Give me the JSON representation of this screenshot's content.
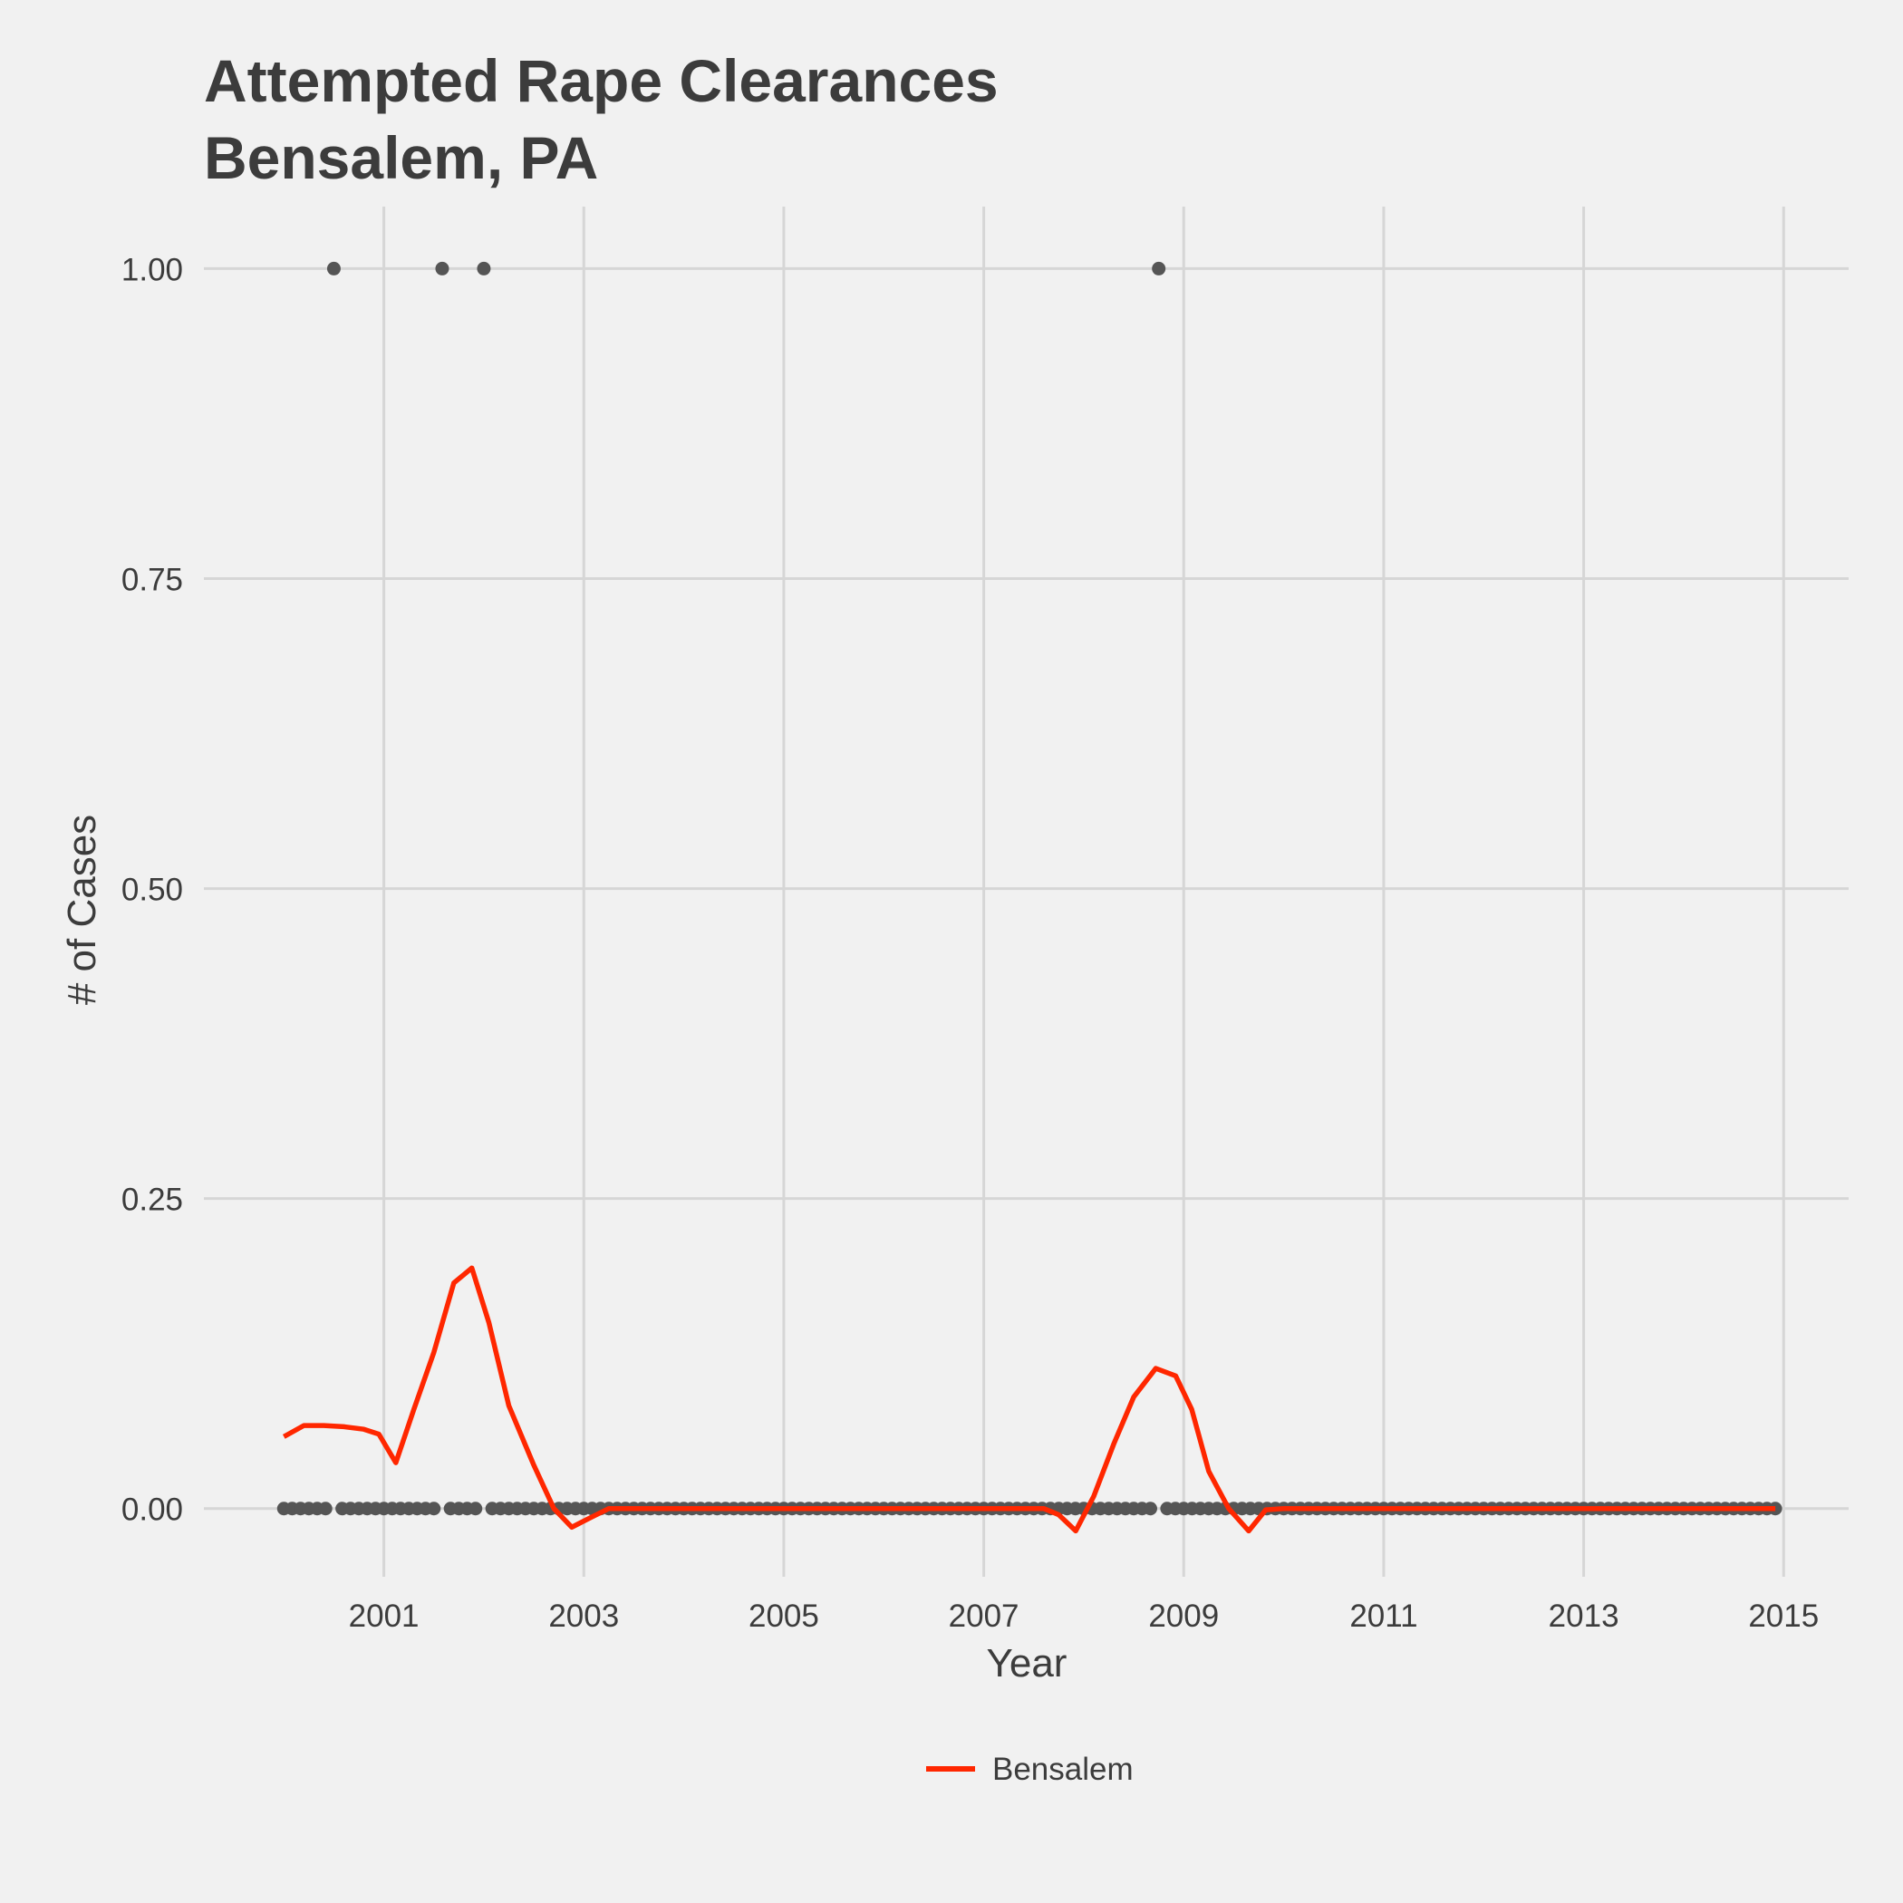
{
  "chart_data": {
    "type": "line",
    "title": "Attempted Rape Clearances",
    "subtitle": "Bensalem, PA",
    "xlabel": "Year",
    "ylabel": "# of Cases",
    "xlim": [
      1999.2,
      2015.65
    ],
    "ylim": [
      -0.055,
      1.05
    ],
    "x_ticks": [
      2001,
      2003,
      2005,
      2007,
      2009,
      2011,
      2013,
      2015
    ],
    "y_ticks": [
      0.0,
      0.25,
      0.5,
      0.75,
      1.0
    ],
    "y_tick_labels": [
      "0.00",
      "0.25",
      "0.50",
      "0.75",
      "1.00"
    ],
    "grid": true,
    "legend_position": "bottom",
    "points": {
      "color": "#555555",
      "start": 2000.0,
      "end": 2014.917,
      "step": 0.0833333,
      "default_value": 0,
      "nonzero": [
        {
          "x": 2000.5,
          "y": 1
        },
        {
          "x": 2001.583,
          "y": 1
        },
        {
          "x": 2002.0,
          "y": 1
        },
        {
          "x": 2008.75,
          "y": 1
        }
      ]
    },
    "series": [
      {
        "name": "Bensalem",
        "color": "#ff2700",
        "x": [
          2000.0,
          2000.2,
          2000.4,
          2000.6,
          2000.8,
          2000.95,
          2001.12,
          2001.3,
          2001.5,
          2001.7,
          2001.88,
          2002.05,
          2002.25,
          2002.5,
          2002.7,
          2002.88,
          2003.05,
          2003.25,
          2005.0,
          2007.0,
          2007.6,
          2007.75,
          2007.92,
          2008.1,
          2008.3,
          2008.5,
          2008.72,
          2008.92,
          2009.08,
          2009.25,
          2009.45,
          2009.65,
          2009.82,
          2010.0,
          2012.0,
          2014.917
        ],
        "y": [
          0.058,
          0.067,
          0.067,
          0.066,
          0.064,
          0.06,
          0.037,
          0.08,
          0.126,
          0.182,
          0.194,
          0.15,
          0.083,
          0.035,
          0.0,
          -0.015,
          -0.008,
          0.0,
          0.0,
          0.0,
          0.0,
          -0.005,
          -0.018,
          0.01,
          0.052,
          0.09,
          0.113,
          0.107,
          0.08,
          0.03,
          0.0,
          -0.018,
          -0.001,
          0.0,
          0.0,
          0.0
        ]
      }
    ]
  }
}
